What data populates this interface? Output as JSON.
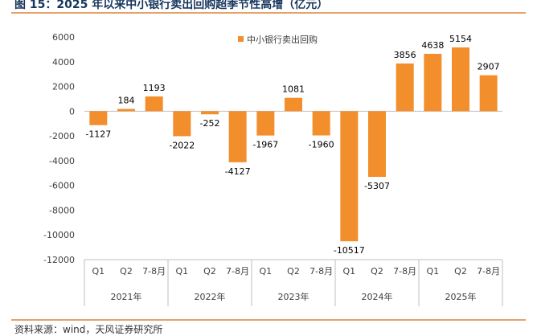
{
  "figure": {
    "title": "图 15：2025 年以来中小银行卖出回购超季节性高增（亿元）",
    "source": "资料来源：wind，天风证券研究所"
  },
  "colors": {
    "bar": "#f28e2b",
    "axis": "#bfbfbf",
    "text": "#404040",
    "rule": "#e4a36a"
  },
  "chart_data": {
    "type": "bar",
    "legend": {
      "label": "中小银行卖出回购",
      "position": "top-center"
    },
    "grid": false,
    "ylim": [
      -12000,
      6000
    ],
    "yticks": [
      6000,
      4000,
      2000,
      0,
      -2000,
      -4000,
      -6000,
      -8000,
      -10000,
      -12000
    ],
    "ytick_labels": [
      "6000",
      "4000",
      "2000",
      "0",
      "-2000",
      "-4000",
      "-6000",
      "-8000",
      "-10000",
      "-12000"
    ],
    "groups": [
      {
        "year": "2021年",
        "periods": [
          {
            "label": "Q1",
            "value": -1127
          },
          {
            "label": "Q2",
            "value": 184
          },
          {
            "label": "7-8月",
            "value": 1193
          }
        ]
      },
      {
        "year": "2022年",
        "periods": [
          {
            "label": "Q1",
            "value": -2022
          },
          {
            "label": "Q2",
            "value": -252
          },
          {
            "label": "7-8月",
            "value": -4127
          }
        ]
      },
      {
        "year": "2023年",
        "periods": [
          {
            "label": "Q1",
            "value": -1967
          },
          {
            "label": "Q2",
            "value": 1081
          },
          {
            "label": "7-8月",
            "value": -1960
          }
        ]
      },
      {
        "year": "2024年",
        "periods": [
          {
            "label": "Q1",
            "value": -10517
          },
          {
            "label": "Q2",
            "value": -5307
          },
          {
            "label": "7-8月",
            "value": 3856
          }
        ]
      },
      {
        "year": "2025年",
        "periods": [
          {
            "label": "Q1",
            "value": 4638
          },
          {
            "label": "Q2",
            "value": 5154
          },
          {
            "label": "7-8月",
            "value": 2907
          }
        ]
      }
    ]
  }
}
